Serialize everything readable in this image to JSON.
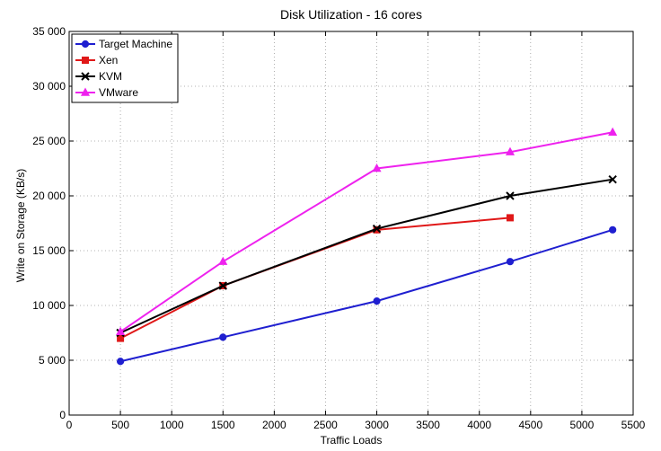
{
  "chart_data": {
    "type": "line",
    "title": "Disk Utilization - 16 cores",
    "xlabel": "Traffic Loads",
    "ylabel": "Write on Storage (KB/s)",
    "xlim": [
      0,
      5500
    ],
    "ylim": [
      0,
      35000
    ],
    "xticks": [
      0,
      500,
      1000,
      1500,
      2000,
      2500,
      3000,
      3500,
      4000,
      4500,
      5000,
      5500
    ],
    "xtick_labels": [
      "0",
      "500",
      "1000",
      "1500",
      "2000",
      "2500",
      "3000",
      "3500",
      "4000",
      "4500",
      "5000",
      "5500"
    ],
    "yticks": [
      0,
      5000,
      10000,
      15000,
      20000,
      25000,
      30000,
      35000
    ],
    "ytick_labels": [
      "0",
      "5 000",
      "10 000",
      "15 000",
      "20 000",
      "25 000",
      "30 000",
      "35 000"
    ],
    "grid": true,
    "legend_position": "top-left",
    "series": [
      {
        "name": "Target Machine",
        "color": "#1f1fd0",
        "marker": "circle",
        "x": [
          500,
          1500,
          3000,
          4300,
          5300
        ],
        "y": [
          4900,
          7100,
          10400,
          14000,
          16900
        ]
      },
      {
        "name": "Xen",
        "color": "#e01818",
        "marker": "square",
        "x": [
          500,
          1500,
          3000,
          4300
        ],
        "y": [
          7000,
          11800,
          16900,
          18000
        ]
      },
      {
        "name": "KVM",
        "color": "#000000",
        "marker": "x",
        "x": [
          500,
          1500,
          3000,
          4300,
          5300
        ],
        "y": [
          7500,
          11800,
          17000,
          20000,
          21500
        ]
      },
      {
        "name": "VMware",
        "color": "#ee22ee",
        "marker": "triangle",
        "x": [
          500,
          1500,
          3000,
          4300,
          5300
        ],
        "y": [
          7600,
          14000,
          22500,
          24000,
          25800
        ]
      }
    ]
  }
}
